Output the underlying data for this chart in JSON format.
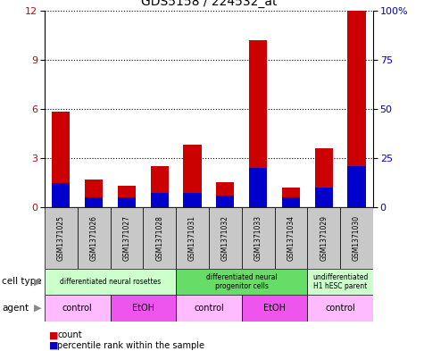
{
  "title": "GDS5158 / 224532_at",
  "samples": [
    "GSM1371025",
    "GSM1371026",
    "GSM1371027",
    "GSM1371028",
    "GSM1371031",
    "GSM1371032",
    "GSM1371033",
    "GSM1371034",
    "GSM1371029",
    "GSM1371030"
  ],
  "count_values": [
    5.8,
    1.7,
    1.3,
    2.5,
    3.8,
    1.5,
    10.2,
    1.2,
    3.6,
    12.0
  ],
  "percentile_values": [
    12.0,
    5.0,
    5.0,
    7.0,
    7.0,
    6.0,
    20.0,
    5.0,
    10.0,
    21.0
  ],
  "ylim_left": [
    0,
    12
  ],
  "ylim_right": [
    0,
    100
  ],
  "yticks_left": [
    0,
    3,
    6,
    9,
    12
  ],
  "yticks_right": [
    0,
    25,
    50,
    75,
    100
  ],
  "ytick_labels_right": [
    "0",
    "25",
    "50",
    "75",
    "100%"
  ],
  "bar_color_count": "#cc0000",
  "bar_color_percentile": "#0000cc",
  "cell_type_groups": [
    {
      "label": "differentiated neural rosettes",
      "start": 0,
      "end": 3,
      "color": "#ccffcc"
    },
    {
      "label": "differentiated neural\nprogenitor cells",
      "start": 4,
      "end": 7,
      "color": "#66dd66"
    },
    {
      "label": "undifferentiated\nH1 hESC parent",
      "start": 8,
      "end": 9,
      "color": "#ccffcc"
    }
  ],
  "agent_groups": [
    {
      "label": "control",
      "start": 0,
      "end": 1,
      "color": "#ffbbff"
    },
    {
      "label": "EtOH",
      "start": 2,
      "end": 3,
      "color": "#ee55ee"
    },
    {
      "label": "control",
      "start": 4,
      "end": 5,
      "color": "#ffbbff"
    },
    {
      "label": "EtOH",
      "start": 6,
      "end": 7,
      "color": "#ee55ee"
    },
    {
      "label": "control",
      "start": 8,
      "end": 9,
      "color": "#ffbbff"
    }
  ],
  "cell_type_label": "cell type",
  "agent_label": "agent",
  "legend_count": "count",
  "legend_percentile": "percentile rank within the sample",
  "bg_color": "#ffffff",
  "sample_bg_color": "#c8c8c8"
}
